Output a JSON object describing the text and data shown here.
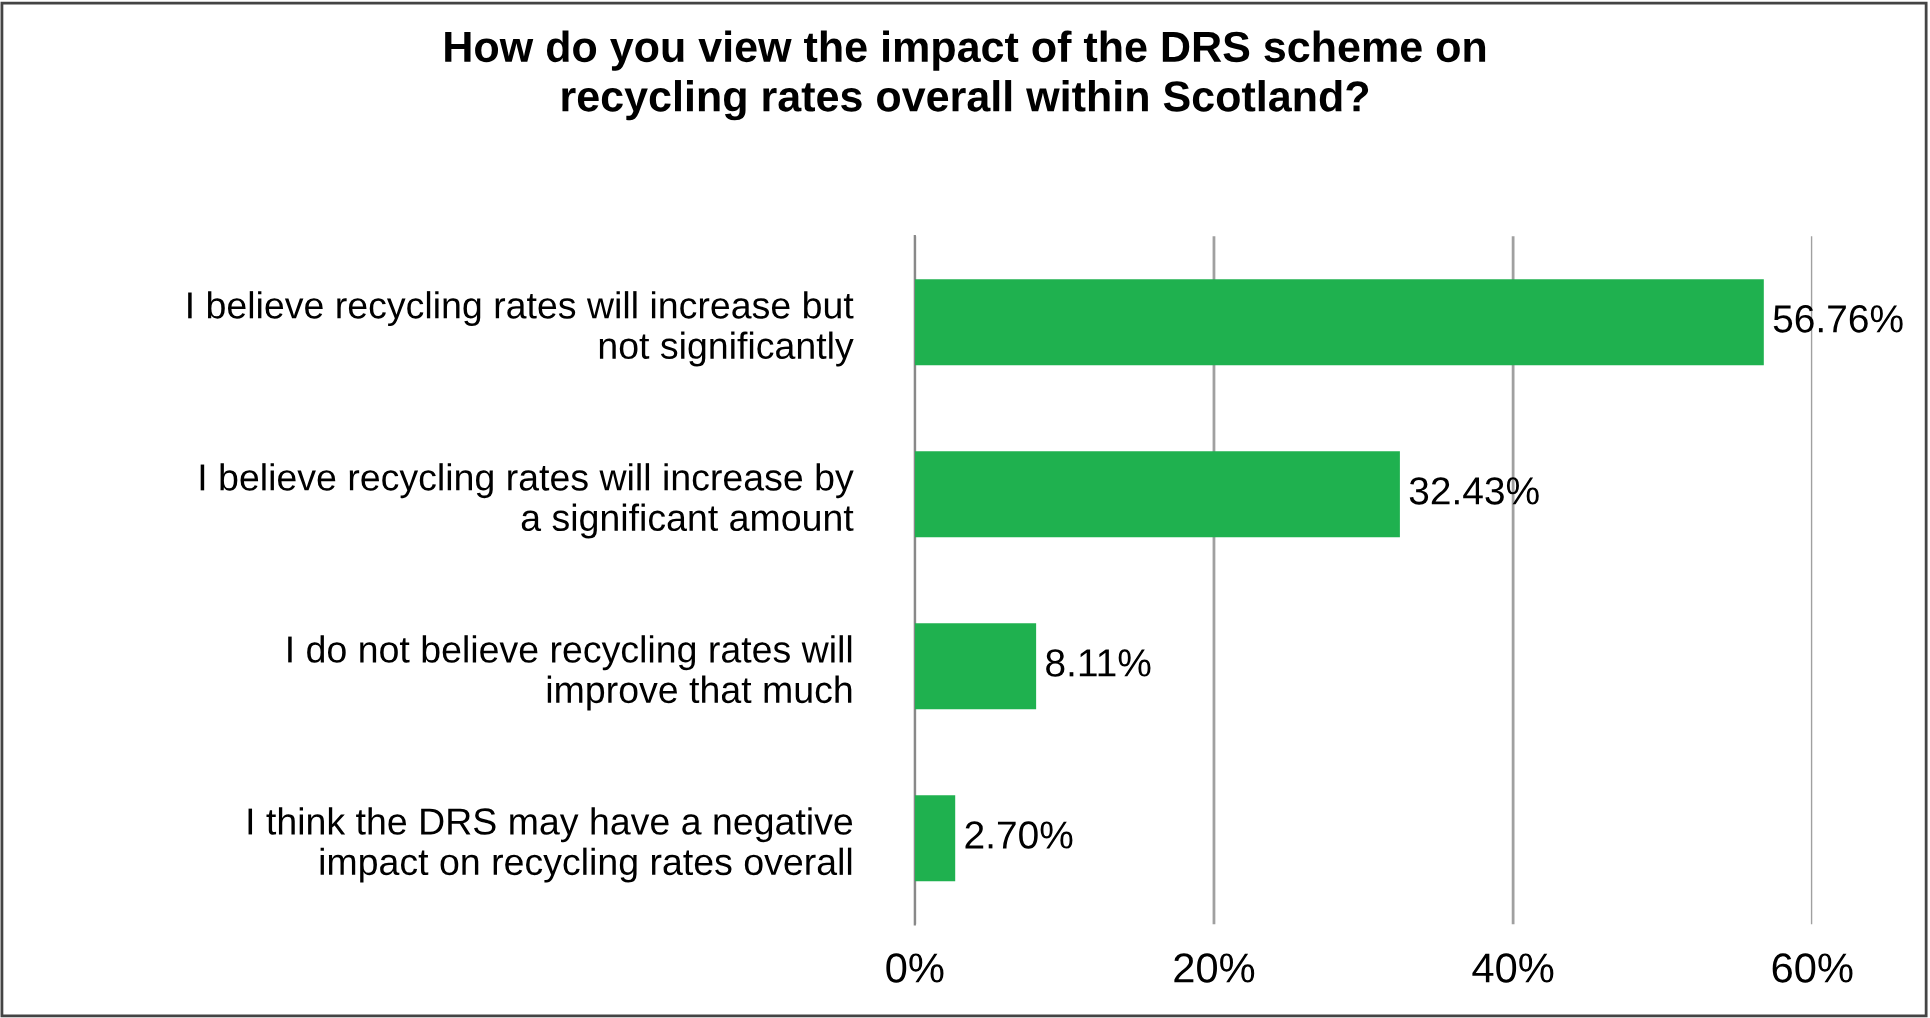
{
  "chart_data": {
    "type": "bar",
    "orientation": "horizontal",
    "title": "How do you view the impact of the DRS scheme on\nrecycling rates overall within Scotland?",
    "categories": [
      "I believe recycling rates will increase but\nnot significantly",
      "I believe recycling rates will increase by\na significant amount",
      "I do not believe recycling rates will\nimprove that much",
      "I think the DRS may have a negative\nimpact on recycling rates overall"
    ],
    "values": [
      56.76,
      32.43,
      8.11,
      2.7
    ],
    "value_labels": [
      "56.76%",
      "32.43%",
      "8.11%",
      "2.70%"
    ],
    "color": "#1fb14f",
    "xlim": [
      0,
      60
    ],
    "xticks": [
      {
        "value": 0,
        "label": "0%"
      },
      {
        "value": 20,
        "label": "20%"
      },
      {
        "value": 40,
        "label": "40%"
      },
      {
        "value": 60,
        "label": "60%"
      }
    ],
    "grid": "x",
    "legend": false
  }
}
